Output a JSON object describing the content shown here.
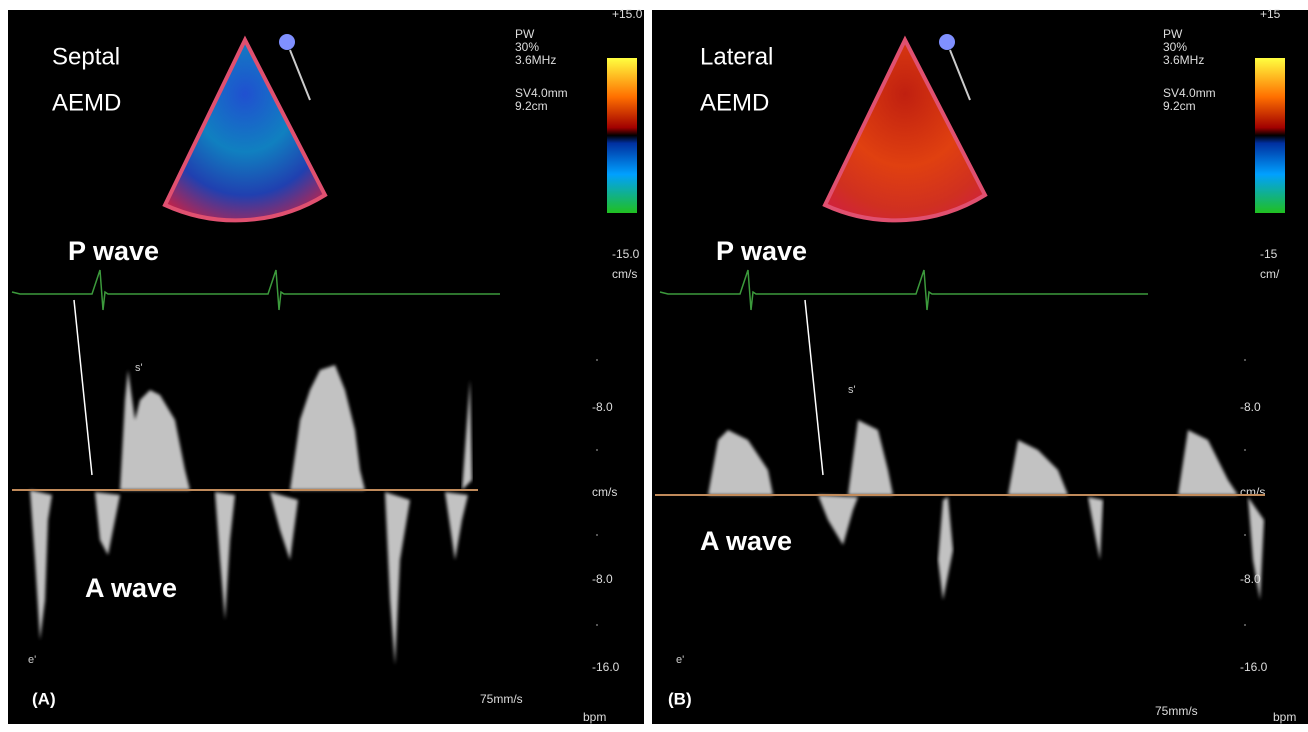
{
  "panels": [
    {
      "label": "(A)",
      "site": [
        "Septal",
        "AEMD"
      ],
      "p_wave": "P wave",
      "a_wave": "A wave",
      "settings": [
        "PW",
        "30%",
        "3.6MHz",
        "SV4.0mm",
        "9.2cm"
      ],
      "scale": [
        "+15.0",
        "-15.0",
        "cm/s",
        "-8.0",
        "cm/s",
        "-8.0",
        "-16.0"
      ],
      "speed": "75mm/s",
      "rate": "bpm",
      "peaks": [
        "s'",
        "e'"
      ]
    },
    {
      "label": "(B)",
      "site": [
        "Lateral",
        "AEMD"
      ],
      "p_wave": "P wave",
      "a_wave": "A wave",
      "settings": [
        "PW",
        "30%",
        "3.6MHz",
        "SV4.0mm",
        "9.2cm"
      ],
      "scale": [
        "+15",
        "-15",
        "cm/",
        "-8.0",
        "cm/s",
        "-8.0",
        "-16.0"
      ],
      "speed": "75mm/s",
      "rate": "bpm",
      "peaks": [
        "s'",
        "e'"
      ]
    }
  ]
}
